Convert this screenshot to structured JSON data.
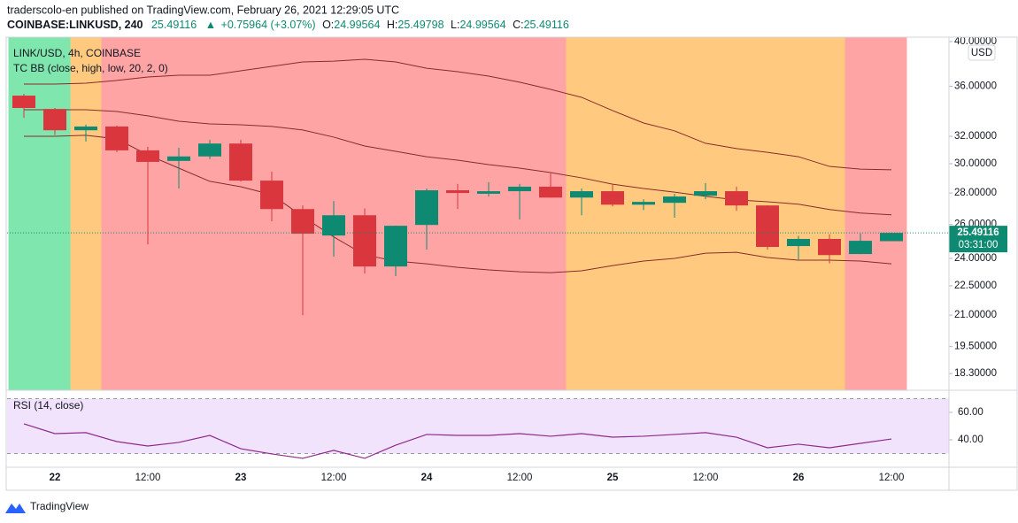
{
  "header": {
    "published": "traderscolo-en published on TradingView.com, February 26, 2021 12:29:05 UTC",
    "symbol": "COINBASE:LINKUSD, 240",
    "last": "25.49116",
    "change": "+0.75964 (+3.07%)",
    "ohlc": [
      {
        "key": "O:",
        "value": "24.99564"
      },
      {
        "key": "H:",
        "value": "25.49798"
      },
      {
        "key": "L:",
        "value": "24.99564"
      },
      {
        "key": "C:",
        "value": "25.49116"
      }
    ]
  },
  "chart_data": [
    {
      "type": "candlestick",
      "title": "LINK/USD, 4h, COINBASE",
      "indicator": "TC BB (close, high, low, 20, 2, 0)",
      "unit": "USD",
      "categories": [
        null,
        "22",
        null,
        null,
        "12:00",
        null,
        null,
        "23",
        null,
        null,
        "12:00",
        null,
        null,
        "24",
        null,
        null,
        "12:00",
        null,
        null,
        "25",
        null,
        null,
        "12:00",
        null,
        null,
        "26",
        null,
        null,
        "12:00"
      ],
      "open": [
        35.22,
        34.13,
        32.46,
        32.75,
        30.96,
        30.2,
        30.52,
        31.46,
        28.83,
        26.96,
        25.33,
        26.57,
        23.55,
        25.97,
        28.18,
        27.95,
        28.12,
        28.42,
        27.7,
        28.12,
        27.24,
        27.36,
        27.82,
        28.12,
        27.19,
        24.71,
        25.13,
        24.25,
        24.99564
      ],
      "high": [
        35.37,
        34.21,
        32.9,
        32.82,
        31.22,
        31.15,
        31.73,
        31.73,
        29.45,
        27.19,
        27.48,
        27.0,
        25.92,
        28.3,
        28.6,
        28.72,
        28.6,
        29.33,
        28.3,
        28.6,
        27.59,
        27.95,
        28.66,
        28.42,
        27.19,
        25.31,
        25.41,
        25.46,
        25.49798
      ],
      "low": [
        33.42,
        32.1,
        31.61,
        30.83,
        24.81,
        28.3,
        30.33,
        28.77,
        26.19,
        21.0,
        24.1,
        23.16,
        23.02,
        24.5,
        26.96,
        27.77,
        26.31,
        27.7,
        26.57,
        27.13,
        26.9,
        26.42,
        27.59,
        26.85,
        24.5,
        23.94,
        23.73,
        24.25,
        24.99564
      ],
      "close": [
        34.21,
        32.46,
        32.75,
        30.96,
        30.13,
        30.52,
        31.46,
        28.83,
        26.96,
        25.44,
        26.57,
        23.55,
        25.92,
        28.18,
        28.0,
        28.12,
        28.42,
        27.7,
        28.12,
        27.24,
        27.42,
        27.77,
        28.12,
        27.19,
        24.66,
        25.13,
        24.19,
        25.02,
        25.49116
      ],
      "up_color": "#0e8a72",
      "down_color": "#d9363e",
      "bands": {
        "color": "#8b2a2a",
        "upper": [
          36.19,
          36.19,
          36.27,
          36.5,
          36.8,
          36.95,
          36.95,
          37.34,
          37.73,
          38.13,
          38.2,
          38.37,
          38.13,
          37.57,
          37.26,
          36.88,
          36.35,
          35.74,
          35.08,
          34.0,
          33.02,
          32.42,
          31.48,
          31.09,
          30.82,
          30.5,
          29.81,
          29.62,
          29.57
        ],
        "middle": [
          34.07,
          34.07,
          34.07,
          33.93,
          33.58,
          33.16,
          32.95,
          32.88,
          32.75,
          32.48,
          31.94,
          31.28,
          30.89,
          30.5,
          30.25,
          29.94,
          29.69,
          29.38,
          29.02,
          28.59,
          28.3,
          28.06,
          27.78,
          27.55,
          27.43,
          27.27,
          26.93,
          26.71,
          26.6
        ],
        "lower": [
          32.0,
          32.0,
          32.08,
          31.81,
          30.63,
          29.69,
          28.78,
          28.42,
          27.89,
          26.49,
          25.25,
          24.2,
          23.85,
          23.7,
          23.5,
          23.36,
          23.26,
          23.21,
          23.31,
          23.6,
          23.85,
          24.0,
          24.3,
          24.35,
          24.05,
          23.9,
          23.9,
          23.85,
          23.7
        ]
      },
      "background_colors": [
        "#7fe6ae",
        "#7fe6ae",
        "#ffca80",
        "#ffa4a4",
        "#ffa4a4",
        "#ffa4a4",
        "#ffa4a4",
        "#ffa4a4",
        "#ffa4a4",
        "#ffa4a4",
        "#ffa4a4",
        "#ffa4a4",
        "#ffa4a4",
        "#ffa4a4",
        "#ffa4a4",
        "#ffa4a4",
        "#ffa4a4",
        "#ffa4a4",
        "#ffca80",
        "#ffca80",
        "#ffca80",
        "#ffca80",
        "#ffca80",
        "#ffca80",
        "#ffca80",
        "#ffca80",
        "#ffca80",
        "#ffa4a4",
        "#ffa4a4"
      ],
      "log_scale": true,
      "grid": false,
      "ylim": [
        17.63,
        40.42
      ],
      "yticks": [
        {
          "value": 40,
          "label": "40.00000"
        },
        {
          "value": 36,
          "label": "36.00000"
        },
        {
          "value": 32,
          "label": "32.00000"
        },
        {
          "value": 30,
          "label": "30.00000"
        },
        {
          "value": 28,
          "label": "28.00000"
        },
        {
          "value": 26,
          "label": "26.00000"
        },
        {
          "value": 24,
          "label": "24.00000"
        },
        {
          "value": 22.5,
          "label": "22.50000"
        },
        {
          "value": 21,
          "label": "21.00000"
        },
        {
          "value": 19.5,
          "label": "19.50000"
        },
        {
          "value": 18.3,
          "label": "18.30000"
        }
      ],
      "price_tag": "25.49116",
      "countdown": "03:31:00"
    },
    {
      "type": "line",
      "title": "RSI (14, close)",
      "color": "#8e2a8e",
      "values": [
        51.6,
        44.5,
        45.2,
        38.7,
        35.5,
        38.1,
        43.2,
        33.5,
        29.7,
        26.5,
        32.3,
        26.5,
        36.1,
        43.9,
        43.2,
        43.2,
        44.5,
        42.6,
        44.5,
        41.9,
        42.6,
        43.9,
        45.2,
        41.9,
        34.2,
        36.8,
        34.2,
        37.4,
        40.6
      ],
      "ylim": [
        20,
        74.8
      ],
      "yticks": [
        {
          "value": 60,
          "label": "60.00"
        },
        {
          "value": 40,
          "label": "40.00"
        }
      ],
      "band": [
        30,
        70
      ],
      "band_color": "#f1e3fb"
    }
  ],
  "footer": {
    "brand": "TradingView"
  }
}
